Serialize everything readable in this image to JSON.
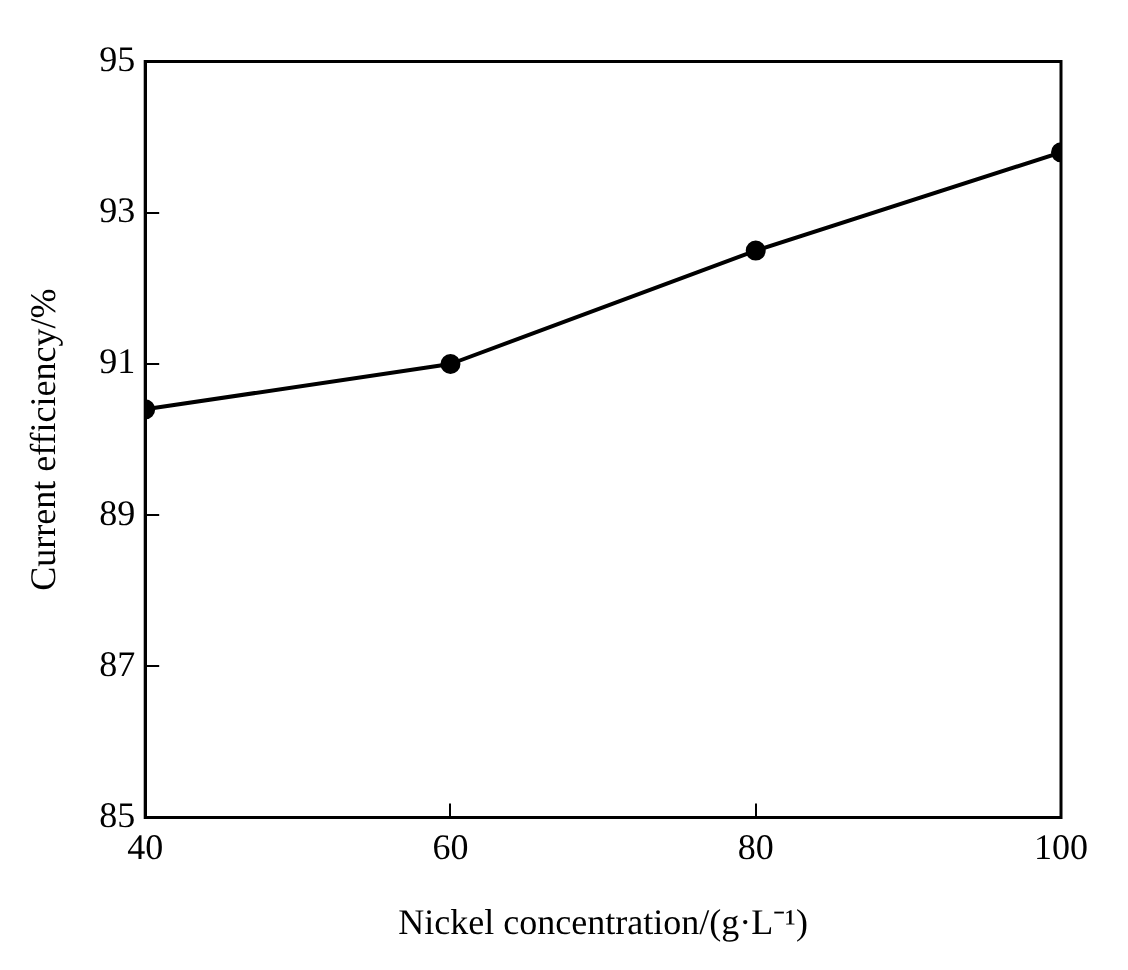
{
  "chart_data": {
    "type": "line",
    "xlabel": "Nickel concentration/(g·L⁻¹)",
    "ylabel": "Current efficiency/%",
    "x": [
      40,
      60,
      80,
      100
    ],
    "series": [
      {
        "color": "#000000",
        "values": [
          90.4,
          91.0,
          92.5,
          93.8
        ]
      }
    ],
    "xlim": [
      40,
      100
    ],
    "xticks": [
      40,
      60,
      80,
      100
    ],
    "ylim": [
      85,
      95
    ],
    "yticks": [
      85,
      87,
      89,
      91,
      93,
      95
    ],
    "grid": false,
    "legend": false,
    "marker": "circle",
    "line_style": "solid"
  }
}
